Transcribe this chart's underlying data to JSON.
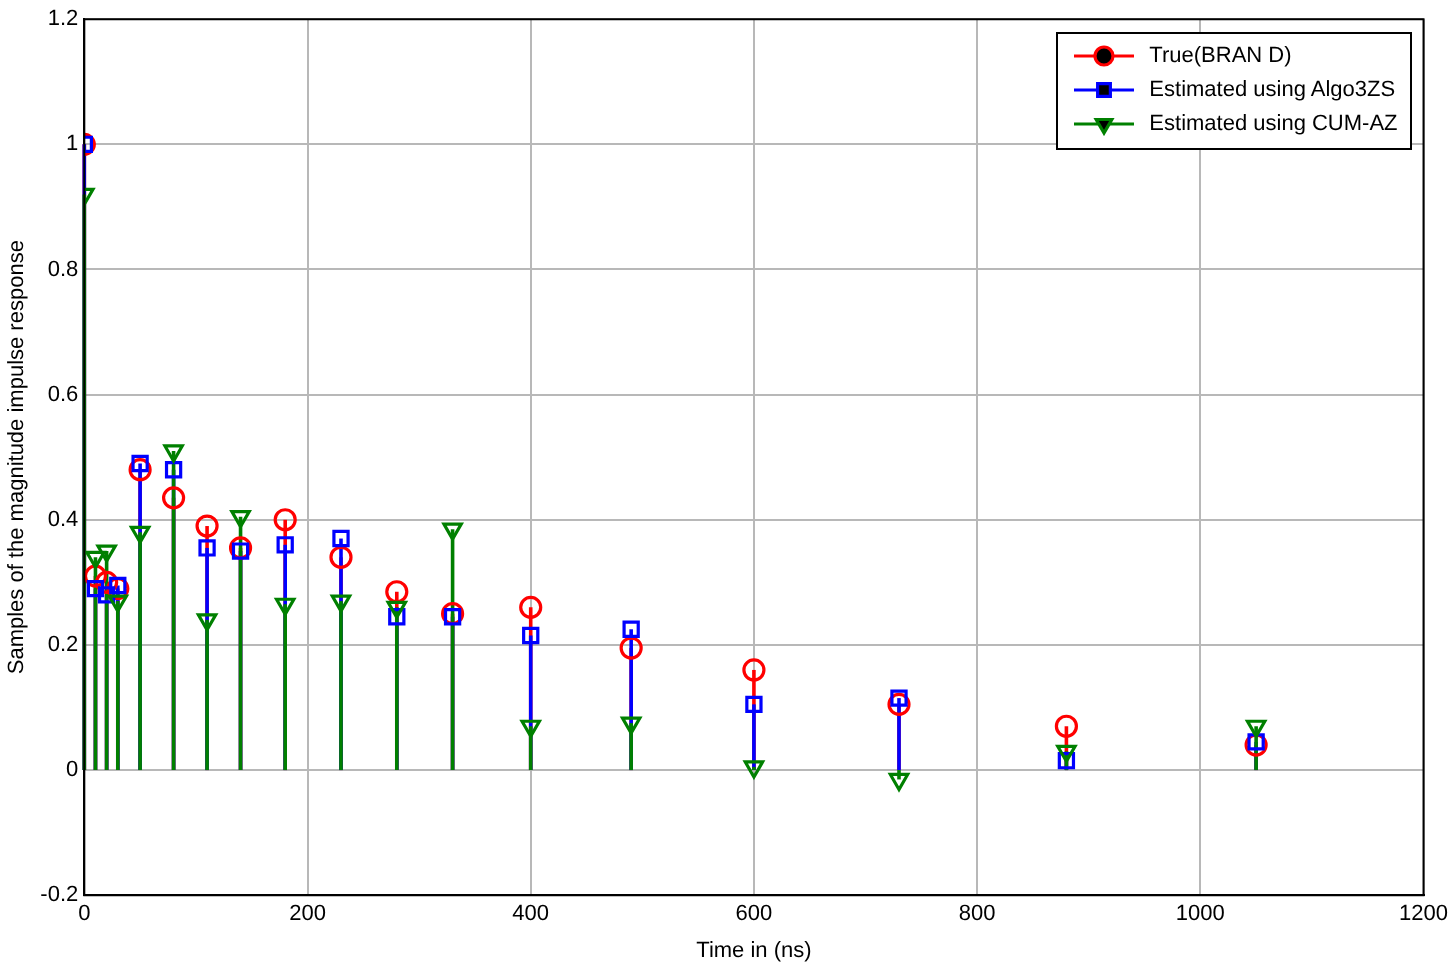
{
  "chart_data": {
    "type": "lollipop",
    "xlabel": "Time in (ns)",
    "ylabel": "Samples of the magnitude impulse response",
    "x": [
      0,
      10,
      20,
      30,
      50,
      80,
      110,
      140,
      180,
      230,
      280,
      330,
      400,
      490,
      600,
      730,
      880,
      1050
    ],
    "xlim": [
      0,
      1200
    ],
    "xticks": [
      0,
      200,
      400,
      600,
      800,
      1000,
      1200
    ],
    "ylim": [
      -0.2,
      1.2
    ],
    "yticks": [
      -0.2,
      0,
      0.2,
      0.4,
      0.6,
      0.8,
      1,
      1.2
    ],
    "grid": true,
    "legend": "top right",
    "series": [
      {
        "name": "True(BRAN D)",
        "color": "#ff0000",
        "marker": "circle",
        "values": [
          1.0,
          0.31,
          0.3,
          0.29,
          0.48,
          0.435,
          0.39,
          0.355,
          0.4,
          0.34,
          0.285,
          0.25,
          0.26,
          0.195,
          0.16,
          0.105,
          0.07,
          0.04
        ]
      },
      {
        "name": "Estimated using Algo3ZS",
        "color": "#0000ff",
        "marker": "square",
        "values": [
          1.0,
          0.29,
          0.28,
          0.295,
          0.49,
          0.48,
          0.355,
          0.35,
          0.36,
          0.37,
          0.245,
          0.245,
          0.215,
          0.225,
          0.105,
          0.115,
          0.015,
          0.045
        ]
      },
      {
        "name": "Estimated using CUM-AZ",
        "color": "#008000",
        "marker": "triangle",
        "values": [
          0.92,
          0.34,
          0.35,
          0.27,
          0.38,
          0.51,
          0.24,
          0.405,
          0.265,
          0.27,
          0.26,
          0.385,
          0.07,
          0.075,
          0.005,
          -0.015,
          0.03,
          0.07
        ]
      }
    ]
  }
}
